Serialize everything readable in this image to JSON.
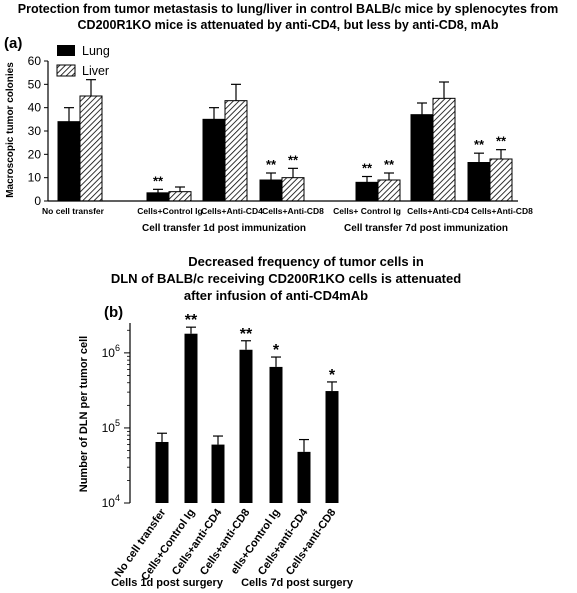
{
  "chart_data": [
    {
      "panel": "(a)",
      "type": "bar",
      "title_lines": [
        "Protection from tumor metastasis to lung/liver in control BALB/c mice by splenocytes from",
        "CD200R1KO mice is attenuated by anti-CD4, but less by anti-CD8, mAb"
      ],
      "ylabel": "Macroscopic tumor colonies",
      "ylim": [
        0,
        60
      ],
      "yticks": [
        0,
        10,
        20,
        30,
        40,
        50,
        60
      ],
      "categories": [
        "No cell transfer",
        "Cells+Control Ig",
        "Cells+Anti-CD4",
        "Cells+Anti-CD8",
        "Cells+ Control Ig",
        "Cells+Anti-CD4",
        "Cells+Anti-CD8"
      ],
      "series": [
        {
          "name": "Lung",
          "pattern": "solid",
          "values": [
            34,
            3.5,
            35,
            9,
            8,
            37,
            16.5
          ],
          "errors": [
            6,
            1.5,
            5,
            3,
            2.5,
            5,
            4
          ],
          "significance": [
            "",
            "**",
            "",
            "**",
            "**",
            "",
            "**"
          ]
        },
        {
          "name": "Liver",
          "pattern": "hatched",
          "values": [
            45,
            4,
            43,
            10,
            9,
            44,
            18
          ],
          "errors": [
            7,
            2,
            7,
            4,
            3,
            7,
            4
          ],
          "significance": [
            "",
            "",
            "",
            "**",
            "**",
            "",
            "**"
          ]
        }
      ],
      "group_labels": [
        "Cell transfer 1d post immunization",
        "Cell transfer 7d post immunization"
      ],
      "legend_position": "top-left"
    },
    {
      "panel": "(b)",
      "type": "bar",
      "title_lines": [
        "Decreased frequency of tumor cells in",
        "DLN of  BALB/c receiving CD200R1KO cells is attenuated",
        "after infusion of anti-CD4mAb"
      ],
      "ylabel": "Number of DLN per tumor cell",
      "scale": "log",
      "ylim": [
        10000,
        2500000
      ],
      "yticks": [
        {
          "value": 10000,
          "base": "10",
          "exp": "4"
        },
        {
          "value": 100000,
          "base": "10",
          "exp": "5"
        },
        {
          "value": 1000000,
          "base": "10",
          "exp": "6"
        }
      ],
      "categories": [
        "No cell transfer",
        "Cells+Control Ig",
        "Cells+anti-CD4",
        "Cells+anti-CD8",
        "ells+Control Ig",
        "Cells+anti-CD4",
        "Cells+anti-CD8"
      ],
      "values": [
        65000,
        1800000,
        60000,
        1100000,
        650000,
        48000,
        310000
      ],
      "error_upper": [
        85000,
        2200000,
        78000,
        1450000,
        880000,
        70000,
        410000
      ],
      "significance": [
        "",
        "**",
        "",
        "**",
        "*",
        "",
        "*"
      ],
      "group_labels": [
        "Cells 1d post surgery",
        "Cells 7d post surgery"
      ]
    }
  ]
}
